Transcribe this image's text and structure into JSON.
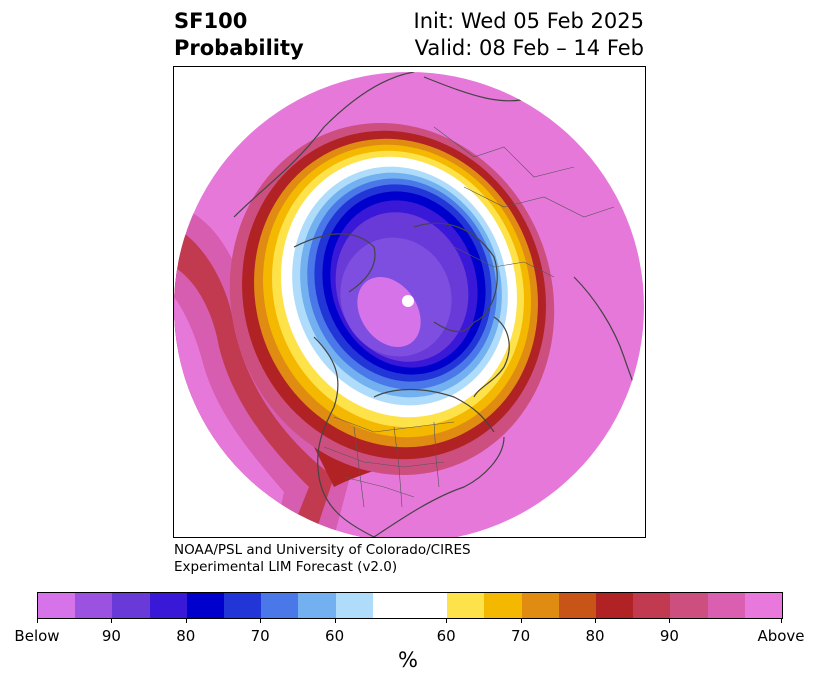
{
  "header": {
    "title_line1": "SF100",
    "title_line2": "Probability",
    "init": "Init: Wed 05 Feb 2025",
    "valid": "Valid: 08 Feb – 14 Feb"
  },
  "credit": {
    "line1": "NOAA/PSL and University of Colorado/CIRES",
    "line2": "Experimental LIM Forecast (v2.0)"
  },
  "colorbar": {
    "colors": [
      "#d673e8",
      "#9b52e0",
      "#6a3ad8",
      "#3a18d8",
      "#0000cc",
      "#2236d8",
      "#4a78e8",
      "#72b0f0",
      "#b0dcfc",
      "#ffffff",
      "#fee24a",
      "#f4b800",
      "#e08c12",
      "#c85418",
      "#b02224",
      "#c23a50",
      "#cc4f80",
      "#da5fb0",
      "#e878dc"
    ],
    "tick_labels": [
      "Below",
      "90",
      "80",
      "70",
      "60",
      "60",
      "70",
      "80",
      "90",
      "Above"
    ],
    "unit_label": "%"
  },
  "map": {
    "projection": "north polar stereographic",
    "below_color": "#7d4ee0",
    "above_color": "#e678da"
  }
}
